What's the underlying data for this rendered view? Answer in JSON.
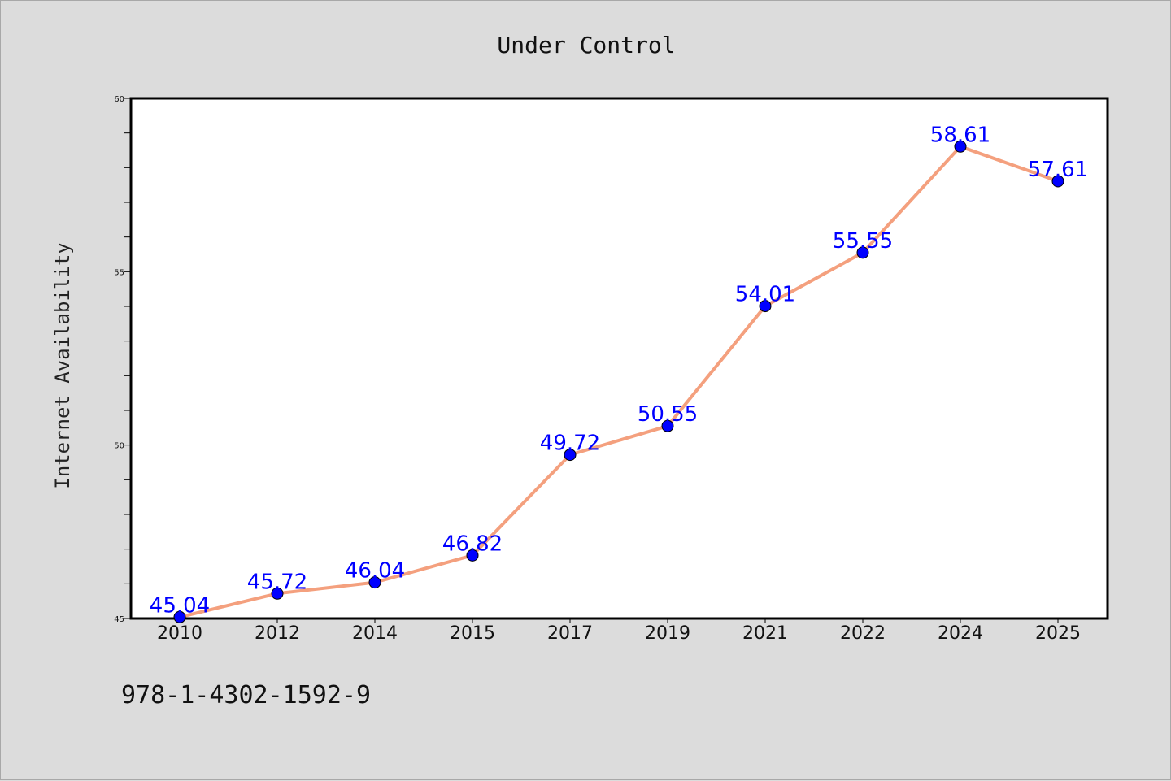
{
  "chart_data": {
    "type": "line",
    "title": "Under Control",
    "xlabel": "",
    "ylabel": "Internet Availability",
    "categories": [
      "2010",
      "2012",
      "2014",
      "2015",
      "2017",
      "2019",
      "2021",
      "2022",
      "2024",
      "2025"
    ],
    "series": [
      {
        "values": [
          45.04,
          45.72,
          46.04,
          46.82,
          49.72,
          50.55,
          54.01,
          55.55,
          58.61,
          57.61
        ],
        "line_color": "#f4a07e",
        "marker_color": "#0000ff"
      }
    ],
    "ylim": [
      45,
      60
    ],
    "yticks": [
      45,
      50,
      55,
      60
    ],
    "y_minor_step": 1,
    "grid": false,
    "legend": "none",
    "data_labels": true,
    "data_label_color": "#0000ff"
  },
  "footer": {
    "isbn": "978-1-4302-1592-9"
  },
  "colors": {
    "background": "#dcdcdc",
    "plot_background": "#ffffff",
    "axis": "#000000"
  }
}
